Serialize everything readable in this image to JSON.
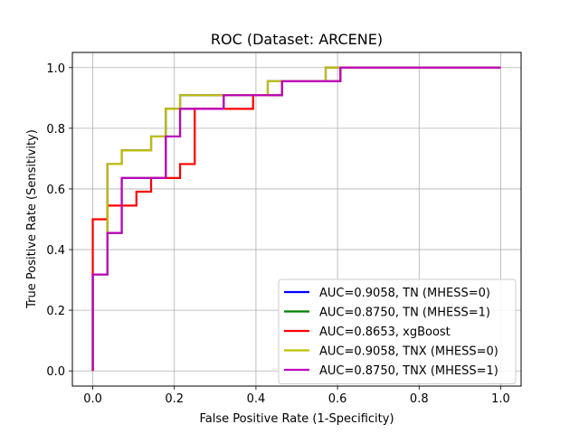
{
  "chart_data": {
    "type": "line",
    "title": "ROC (Dataset: ARCENE)",
    "xlabel": "False Positive Rate (1-Specificity)",
    "ylabel": "True Positive Rate (Sensitivity)",
    "xlim": [
      -0.05,
      1.05
    ],
    "ylim": [
      -0.05,
      1.05
    ],
    "xticks": [
      0.0,
      0.2,
      0.4,
      0.6,
      0.8,
      1.0
    ],
    "yticks": [
      0.0,
      0.2,
      0.4,
      0.6,
      0.8,
      1.0
    ],
    "xtick_labels": [
      "0.0",
      "0.2",
      "0.4",
      "0.6",
      "0.8",
      "1.0"
    ],
    "ytick_labels": [
      "0.0",
      "0.2",
      "0.4",
      "0.6",
      "0.8",
      "1.0"
    ],
    "grid": true,
    "legend_position": "lower-right",
    "series": [
      {
        "name": "AUC=0.9058, TN (MHESS=0)",
        "color": "#0000ff",
        "x": [
          0.0,
          0.0,
          0.036,
          0.036,
          0.071,
          0.071,
          0.143,
          0.143,
          0.179,
          0.179,
          0.214,
          0.214,
          0.321,
          0.321,
          0.429,
          0.429,
          0.571,
          0.571,
          1.0
        ],
        "y": [
          0.0,
          0.318,
          0.318,
          0.682,
          0.682,
          0.727,
          0.727,
          0.773,
          0.773,
          0.864,
          0.864,
          0.909,
          0.909,
          0.909,
          0.909,
          0.955,
          0.955,
          1.0,
          1.0
        ]
      },
      {
        "name": "AUC=0.8750, TN (MHESS=1)",
        "color": "#008000",
        "x": [
          0.0,
          0.0,
          0.036,
          0.036,
          0.071,
          0.071,
          0.179,
          0.179,
          0.214,
          0.214,
          0.321,
          0.321,
          0.464,
          0.464,
          0.607,
          0.607,
          1.0
        ],
        "y": [
          0.0,
          0.318,
          0.318,
          0.455,
          0.455,
          0.636,
          0.636,
          0.773,
          0.773,
          0.864,
          0.864,
          0.909,
          0.909,
          0.955,
          0.955,
          1.0,
          1.0
        ]
      },
      {
        "name": "AUC=0.8653, xgBoost",
        "color": "#ff0000",
        "x": [
          0.0,
          0.0,
          0.036,
          0.036,
          0.107,
          0.107,
          0.143,
          0.143,
          0.214,
          0.214,
          0.25,
          0.25,
          0.393,
          0.393,
          0.464,
          0.464,
          0.607,
          0.607,
          1.0
        ],
        "y": [
          0.0,
          0.5,
          0.5,
          0.545,
          0.545,
          0.591,
          0.591,
          0.636,
          0.636,
          0.682,
          0.682,
          0.864,
          0.864,
          0.909,
          0.909,
          0.955,
          0.955,
          1.0,
          1.0
        ]
      },
      {
        "name": "AUC=0.9058, TNX (MHESS=0)",
        "color": "#bfbf00",
        "x": [
          0.0,
          0.0,
          0.036,
          0.036,
          0.071,
          0.071,
          0.143,
          0.143,
          0.179,
          0.179,
          0.214,
          0.214,
          0.321,
          0.321,
          0.429,
          0.429,
          0.571,
          0.571,
          1.0
        ],
        "y": [
          0.0,
          0.318,
          0.318,
          0.682,
          0.682,
          0.727,
          0.727,
          0.773,
          0.773,
          0.864,
          0.864,
          0.909,
          0.909,
          0.909,
          0.909,
          0.955,
          0.955,
          1.0,
          1.0
        ]
      },
      {
        "name": "AUC=0.8750, TNX (MHESS=1)",
        "color": "#bf00bf",
        "x": [
          0.0,
          0.0,
          0.036,
          0.036,
          0.071,
          0.071,
          0.179,
          0.179,
          0.214,
          0.214,
          0.321,
          0.321,
          0.464,
          0.464,
          0.607,
          0.607,
          1.0
        ],
        "y": [
          0.0,
          0.318,
          0.318,
          0.455,
          0.455,
          0.636,
          0.636,
          0.773,
          0.773,
          0.864,
          0.864,
          0.909,
          0.909,
          0.955,
          0.955,
          1.0,
          1.0
        ]
      }
    ]
  }
}
